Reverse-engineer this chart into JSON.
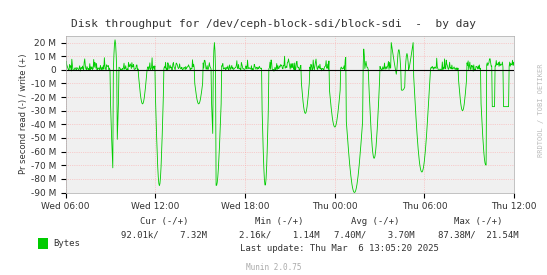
{
  "title": "Disk throughput for /dev/ceph-block-sdi/block-sdi  -  by day",
  "ylabel": "Pr second read (-) / write (+)",
  "watermark": "RRDTOOL / TOBI OETIKER",
  "munin_version": "Munin 2.0.75",
  "ylim": [
    -90,
    25
  ],
  "yticks": [
    -90,
    -80,
    -70,
    -60,
    -50,
    -40,
    -30,
    -20,
    -10,
    0,
    10,
    20
  ],
  "ytick_labels": [
    "-90 M",
    "-80 M",
    "-70 M",
    "-60 M",
    "-50 M",
    "-40 M",
    "-30 M",
    "-20 M",
    "-10 M",
    "0",
    "10 M",
    "20 M"
  ],
  "xtick_labels": [
    "Wed 06:00",
    "Wed 12:00",
    "Wed 18:00",
    "Thu 00:00",
    "Thu 06:00",
    "Thu 12:00"
  ],
  "line_color": "#00cc00",
  "zero_line_color": "#000000",
  "bg_color": "#ffffff",
  "plot_bg_color": "#f0f0f0",
  "grid_color": "#ff9999",
  "grid_style": "--",
  "border_color": "#aaaaaa",
  "legend_square_color": "#00cc00",
  "legend_text": "Bytes",
  "stats_cur": "92.01k/    7.32M",
  "stats_min": "2.16k/    1.14M",
  "stats_avg": "7.40M/    3.70M",
  "stats_max": "87.38M/  21.54M",
  "last_update": "Last update: Thu Mar  6 13:05:20 2025",
  "title_color": "#333333",
  "stats_color": "#555555",
  "right_label_color": "#bbbbbb",
  "n_points": 800
}
